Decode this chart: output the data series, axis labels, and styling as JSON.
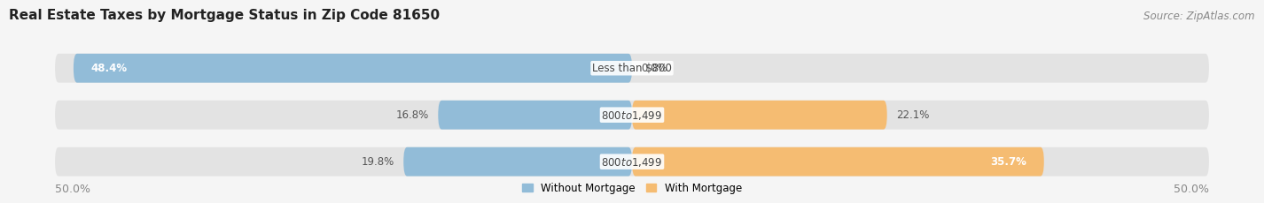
{
  "title": "Real Estate Taxes by Mortgage Status in Zip Code 81650",
  "source": "Source: ZipAtlas.com",
  "rows": [
    {
      "label": "Less than $800",
      "without_mortgage": 48.4,
      "with_mortgage": 0.0,
      "wo_label_inside": true,
      "wi_label_inside": false
    },
    {
      "label": "$800 to $1,499",
      "without_mortgage": 16.8,
      "with_mortgage": 22.1,
      "wo_label_inside": false,
      "wi_label_inside": false
    },
    {
      "label": "$800 to $1,499",
      "without_mortgage": 19.8,
      "with_mortgage": 35.7,
      "wo_label_inside": false,
      "wi_label_inside": true
    }
  ],
  "x_min": -50.0,
  "x_max": 50.0,
  "color_without": "#92bcd8",
  "color_with": "#f5bc72",
  "bar_height": 0.62,
  "background_color": "#f5f5f5",
  "bar_background": "#e3e3e3",
  "title_fontsize": 11,
  "source_fontsize": 8.5,
  "label_fontsize": 8.5,
  "pct_fontsize": 8.5,
  "tick_fontsize": 9
}
